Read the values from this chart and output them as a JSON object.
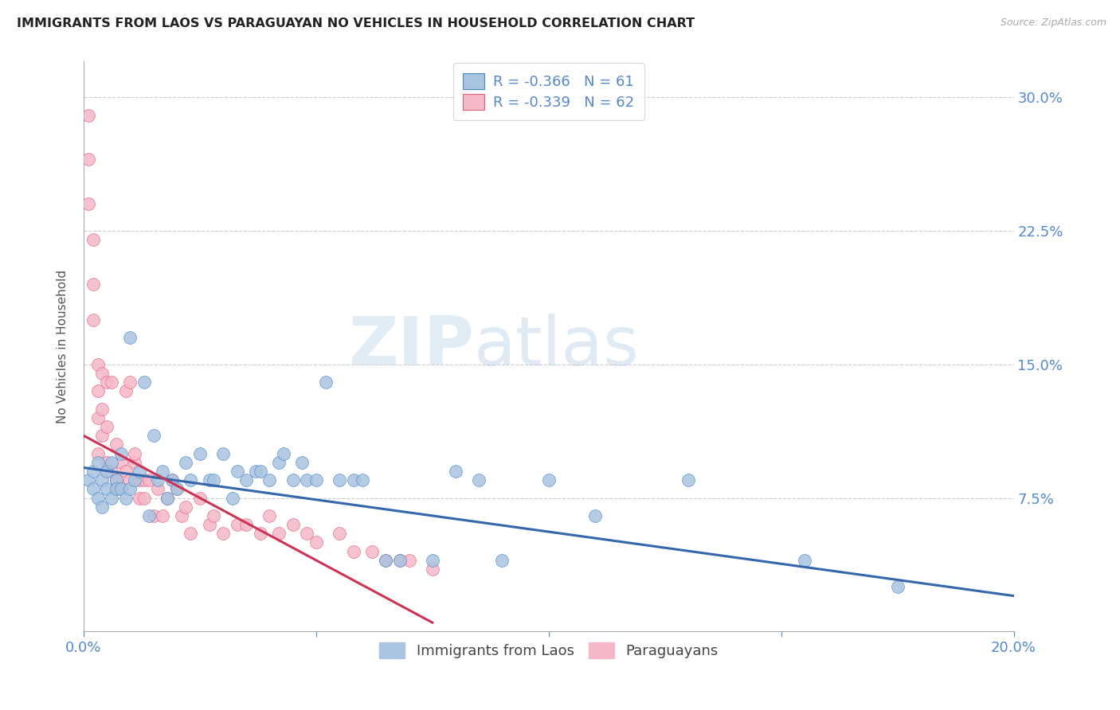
{
  "title": "IMMIGRANTS FROM LAOS VS PARAGUAYAN NO VEHICLES IN HOUSEHOLD CORRELATION CHART",
  "source": "Source: ZipAtlas.com",
  "ylabel": "No Vehicles in Household",
  "watermark_zip": "ZIP",
  "watermark_atlas": "atlas",
  "legend_blue_label": "Immigrants from Laos",
  "legend_pink_label": "Paraguayans",
  "legend_blue_text": "R = -0.366   N = 61",
  "legend_pink_text": "R = -0.339   N = 62",
  "xlim": [
    0.0,
    0.2
  ],
  "ylim": [
    0.0,
    0.32
  ],
  "xtick_vals": [
    0.0,
    0.05,
    0.1,
    0.15,
    0.2
  ],
  "xtick_labels": [
    "0.0%",
    "",
    "",
    "",
    "20.0%"
  ],
  "yticks_right": [
    0.075,
    0.15,
    0.225,
    0.3
  ],
  "ytick_right_labels": [
    "7.5%",
    "15.0%",
    "22.5%",
    "30.0%"
  ],
  "blue_fill": "#a8c4e0",
  "blue_edge": "#4a86c8",
  "pink_fill": "#f5b8c8",
  "pink_edge": "#e0607a",
  "blue_line_color": "#3366aa",
  "pink_line_color": "#cc3355",
  "title_color": "#222222",
  "axis_label_color": "#5588cc",
  "grid_color": "#cccccc",
  "blue_scatter_x": [
    0.001,
    0.002,
    0.002,
    0.003,
    0.003,
    0.004,
    0.004,
    0.005,
    0.005,
    0.006,
    0.006,
    0.007,
    0.007,
    0.008,
    0.008,
    0.009,
    0.01,
    0.01,
    0.011,
    0.012,
    0.013,
    0.014,
    0.015,
    0.016,
    0.017,
    0.018,
    0.019,
    0.02,
    0.022,
    0.023,
    0.025,
    0.027,
    0.028,
    0.03,
    0.032,
    0.033,
    0.035,
    0.037,
    0.038,
    0.04,
    0.042,
    0.043,
    0.045,
    0.047,
    0.048,
    0.05,
    0.052,
    0.055,
    0.058,
    0.06,
    0.065,
    0.068,
    0.075,
    0.08,
    0.085,
    0.09,
    0.1,
    0.11,
    0.13,
    0.155,
    0.175
  ],
  "blue_scatter_y": [
    0.085,
    0.09,
    0.08,
    0.095,
    0.075,
    0.085,
    0.07,
    0.09,
    0.08,
    0.095,
    0.075,
    0.085,
    0.08,
    0.1,
    0.08,
    0.075,
    0.165,
    0.08,
    0.085,
    0.09,
    0.14,
    0.065,
    0.11,
    0.085,
    0.09,
    0.075,
    0.085,
    0.08,
    0.095,
    0.085,
    0.1,
    0.085,
    0.085,
    0.1,
    0.075,
    0.09,
    0.085,
    0.09,
    0.09,
    0.085,
    0.095,
    0.1,
    0.085,
    0.095,
    0.085,
    0.085,
    0.14,
    0.085,
    0.085,
    0.085,
    0.04,
    0.04,
    0.04,
    0.09,
    0.085,
    0.04,
    0.085,
    0.065,
    0.085,
    0.04,
    0.025
  ],
  "pink_scatter_x": [
    0.001,
    0.001,
    0.001,
    0.002,
    0.002,
    0.002,
    0.003,
    0.003,
    0.003,
    0.003,
    0.004,
    0.004,
    0.004,
    0.005,
    0.005,
    0.005,
    0.006,
    0.006,
    0.007,
    0.007,
    0.007,
    0.008,
    0.008,
    0.009,
    0.009,
    0.01,
    0.01,
    0.011,
    0.011,
    0.012,
    0.012,
    0.013,
    0.013,
    0.014,
    0.015,
    0.016,
    0.017,
    0.018,
    0.019,
    0.02,
    0.021,
    0.022,
    0.023,
    0.025,
    0.027,
    0.028,
    0.03,
    0.033,
    0.035,
    0.038,
    0.04,
    0.042,
    0.045,
    0.048,
    0.05,
    0.055,
    0.058,
    0.062,
    0.065,
    0.068,
    0.07,
    0.075
  ],
  "pink_scatter_y": [
    0.29,
    0.265,
    0.24,
    0.22,
    0.195,
    0.175,
    0.15,
    0.135,
    0.12,
    0.1,
    0.145,
    0.125,
    0.11,
    0.14,
    0.115,
    0.095,
    0.14,
    0.09,
    0.105,
    0.085,
    0.08,
    0.095,
    0.08,
    0.135,
    0.09,
    0.085,
    0.14,
    0.095,
    0.1,
    0.075,
    0.085,
    0.085,
    0.075,
    0.085,
    0.065,
    0.08,
    0.065,
    0.075,
    0.085,
    0.08,
    0.065,
    0.07,
    0.055,
    0.075,
    0.06,
    0.065,
    0.055,
    0.06,
    0.06,
    0.055,
    0.065,
    0.055,
    0.06,
    0.055,
    0.05,
    0.055,
    0.045,
    0.045,
    0.04,
    0.04,
    0.04,
    0.035
  ],
  "blue_trend_x": [
    0.0,
    0.2
  ],
  "blue_trend_y": [
    0.092,
    0.02
  ],
  "pink_trend_x": [
    0.0,
    0.075
  ],
  "pink_trend_y": [
    0.11,
    0.005
  ]
}
